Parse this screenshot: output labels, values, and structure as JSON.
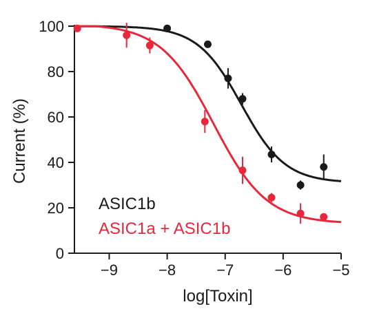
{
  "chart_data": {
    "type": "scatter",
    "xlabel": "log[Toxin]",
    "ylabel": "Current (%)",
    "xlim": [
      -9.6,
      -5
    ],
    "ylim": [
      0,
      100
    ],
    "xticks": [
      -9,
      -8,
      -7,
      -6,
      -5
    ],
    "xtick_labels": [
      "−9",
      "−8",
      "−7",
      "−6",
      "−5"
    ],
    "yticks": [
      0,
      20,
      40,
      60,
      80,
      100
    ],
    "ytick_labels": [
      "0",
      "20",
      "40",
      "60",
      "80",
      "100"
    ],
    "grid": false,
    "legend_position": "bottom-left",
    "series": [
      {
        "name": "ASIC1b",
        "color": "#1a1a1a",
        "points": [
          {
            "x": -8.0,
            "y": 99.0,
            "err": 1.0
          },
          {
            "x": -7.3,
            "y": 92.0,
            "err": 1.5
          },
          {
            "x": -6.95,
            "y": 77.0,
            "err": 4.5
          },
          {
            "x": -6.7,
            "y": 68.0,
            "err": 2.5
          },
          {
            "x": -6.2,
            "y": 43.5,
            "err": 3.5
          },
          {
            "x": -5.7,
            "y": 30.0,
            "err": 2.0
          },
          {
            "x": -5.3,
            "y": 38.0,
            "err": 5.5
          }
        ],
        "fit": {
          "top": 100,
          "bottom": 31.0,
          "log_ic50": -6.72,
          "hill": 1.15
        }
      },
      {
        "name": "ASIC1a + ASIC1b",
        "color": "#e8283a",
        "points": [
          {
            "x": -9.55,
            "y": 99.0,
            "err": 0.8
          },
          {
            "x": -8.7,
            "y": 96.0,
            "err": 5.5
          },
          {
            "x": -8.3,
            "y": 91.5,
            "err": 3.5
          },
          {
            "x": -7.35,
            "y": 58.0,
            "err": 5.0
          },
          {
            "x": -6.7,
            "y": 36.5,
            "err": 6.0
          },
          {
            "x": -6.2,
            "y": 24.5,
            "err": 2.0
          },
          {
            "x": -5.7,
            "y": 17.5,
            "err": 4.5
          },
          {
            "x": -5.3,
            "y": 16.0,
            "err": 1.0
          }
        ],
        "fit": {
          "top": 101,
          "bottom": 13.0,
          "log_ic50": -7.2,
          "hill": 0.95
        }
      }
    ]
  }
}
